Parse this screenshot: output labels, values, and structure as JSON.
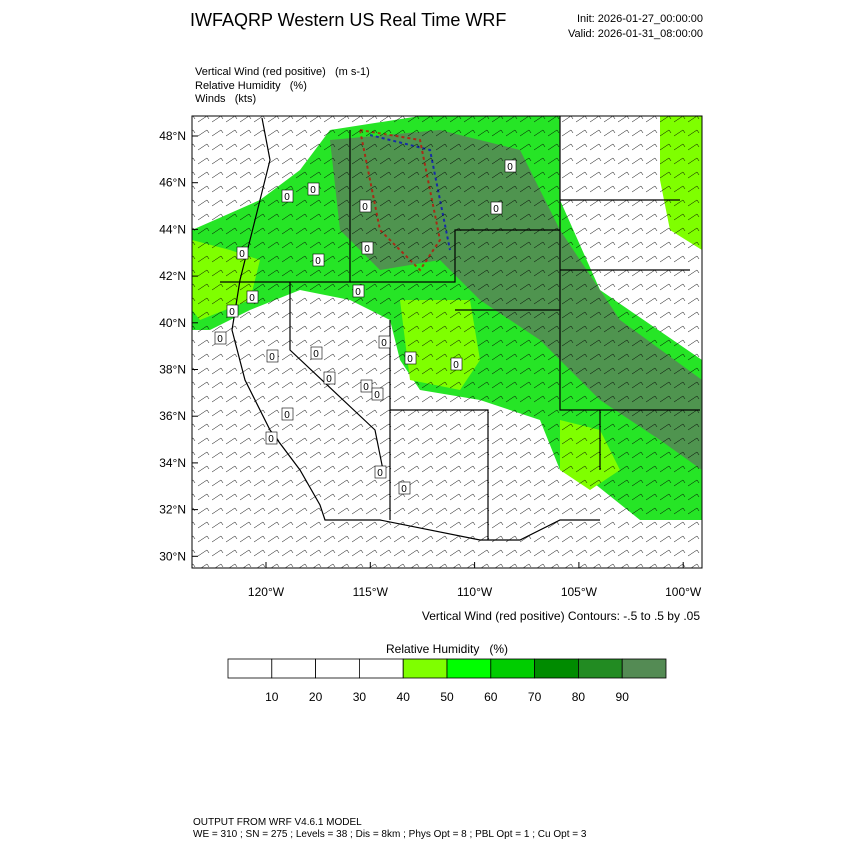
{
  "header": {
    "title": "IWFAQRP Western US Real Time WRF",
    "init": "Init: 2026-01-27_00:00:00",
    "valid": "Valid: 2026-01-31_08:00:00"
  },
  "fields": [
    "Vertical Wind (red positive)   (m s-1)",
    "Relative Humidity   (%)",
    "Winds   (kts)"
  ],
  "map": {
    "lat_labels": [
      "48°N",
      "46°N",
      "44°N",
      "42°N",
      "40°N",
      "38°N",
      "36°N",
      "34°N",
      "32°N",
      "30°N"
    ],
    "lon_labels": [
      "120°W",
      "115°W",
      "110°W",
      "105°W",
      "100°W"
    ],
    "contour_labels": [
      "0",
      "0",
      "0",
      "0",
      "0",
      "0",
      "0",
      "0",
      "0",
      "0",
      "0",
      "0",
      "0",
      "0",
      "0",
      "0",
      "0",
      "0",
      "0",
      "0",
      "0",
      "0",
      "0",
      "0"
    ],
    "contour_note": "Vertical Wind (red positive) Contours: -.5 to .5 by .05"
  },
  "colorbar": {
    "title": "Relative Humidity   (%)",
    "colors": [
      "#ffffff",
      "#ffffff",
      "#ffffff",
      "#ffffff",
      "#7fff00",
      "#00ff00",
      "#00cd00",
      "#008b00",
      "#228b22",
      "#548b54"
    ],
    "labels": [
      10,
      20,
      30,
      40,
      50,
      60,
      70,
      80,
      90
    ]
  },
  "footer": [
    "OUTPUT FROM WRF V4.6.1 MODEL",
    "WE = 310 ; SN = 275 ; Levels = 38 ; Dis = 8km ; Phys Opt = 8 ; PBL Opt = 1 ; Cu Opt = 3"
  ]
}
